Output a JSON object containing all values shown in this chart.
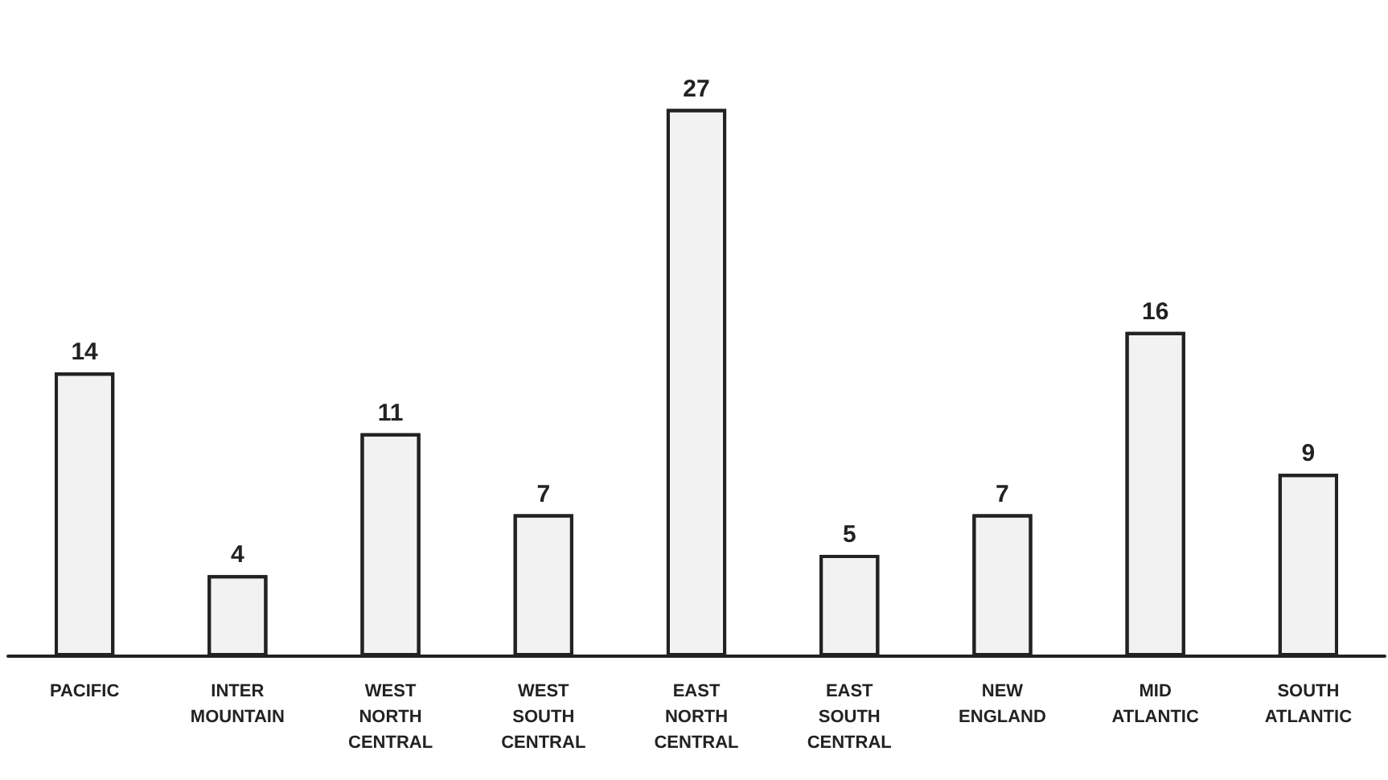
{
  "chart_data": {
    "type": "bar",
    "categories": [
      "PACIFIC",
      "INTER\nMOUNTAIN",
      "WEST\nNORTH\nCENTRAL",
      "WEST\nSOUTH\nCENTRAL",
      "EAST\nNORTH\nCENTRAL",
      "EAST\nSOUTH\nCENTRAL",
      "NEW\nENGLAND",
      "MID\nATLANTIC",
      "SOUTH\nATLANTIC"
    ],
    "values": [
      14,
      4,
      11,
      7,
      27,
      5,
      7,
      16,
      9
    ],
    "color": "#f2f2f2",
    "data_labels": true
  }
}
